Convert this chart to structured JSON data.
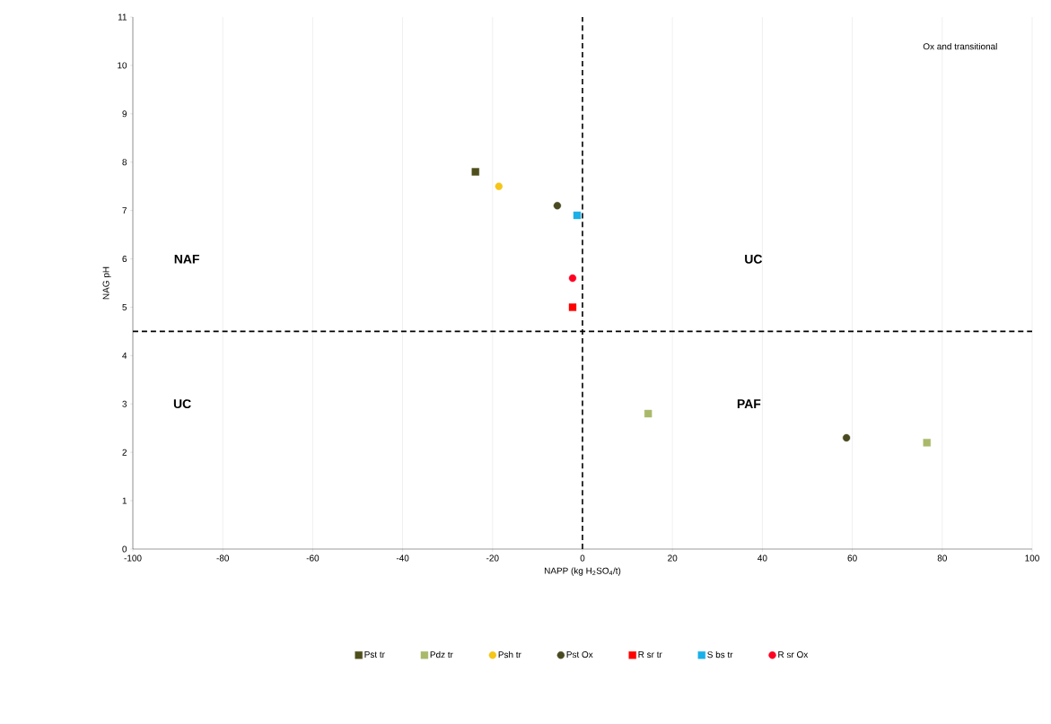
{
  "chart_data": {
    "type": "scatter",
    "xlabel": "NAPP (kg H$_{2}$SO$_{4}$/t)",
    "ylabel": "NAG pH",
    "xlim": [
      -100,
      100
    ],
    "xticks": [
      -100,
      -80,
      -60,
      -40,
      -20,
      0,
      20,
      40,
      60,
      80,
      100
    ],
    "ylim": [
      0,
      11
    ],
    "yticks": [
      0,
      1,
      2,
      3,
      4,
      5,
      6,
      7,
      8,
      9,
      10,
      11
    ],
    "grid": "x",
    "legend": "bottom",
    "series": [
      {
        "name": "Pst tr",
        "color": "#4f4f1c",
        "marker": "square",
        "x": [
          -23.8
        ],
        "values": [
          7.8
        ]
      },
      {
        "name": "Pdz tr",
        "color": "#a9b96a",
        "marker": "square",
        "x": [
          14.6,
          76.6
        ],
        "values": [
          2.8,
          2.2
        ]
      },
      {
        "name": "Psh tr",
        "color": "#f5c518",
        "marker": "circle",
        "x": [
          -18.6
        ],
        "values": [
          7.5
        ]
      },
      {
        "name": "Pst Ox",
        "color": "#4a4a20",
        "marker": "circle",
        "x": [
          -5.6,
          58.7
        ],
        "values": [
          7.1,
          2.3
        ]
      },
      {
        "name": "R sr tr",
        "color": "#ff0000",
        "marker": "square",
        "x": [
          -2.2
        ],
        "values": [
          5.0
        ]
      },
      {
        "name": "S bs tr",
        "color": "#1ab0e8",
        "marker": "square",
        "x": [
          -1.2
        ],
        "values": [
          6.9
        ]
      },
      {
        "name": "R sr Ox",
        "color": "#ff0022",
        "marker": "circle",
        "x": [
          -2.2
        ],
        "values": [
          5.6
        ]
      }
    ],
    "ref_lines": [
      {
        "axis": "x",
        "value": 0,
        "line_style": "dashed",
        "color": "#000000"
      },
      {
        "axis": "y",
        "value": 4.5,
        "line_style": "dashed",
        "color": "#000000"
      }
    ],
    "annotations": [
      "NAF",
      "UC",
      "UC",
      "PAF",
      "Ox and transitional"
    ]
  }
}
